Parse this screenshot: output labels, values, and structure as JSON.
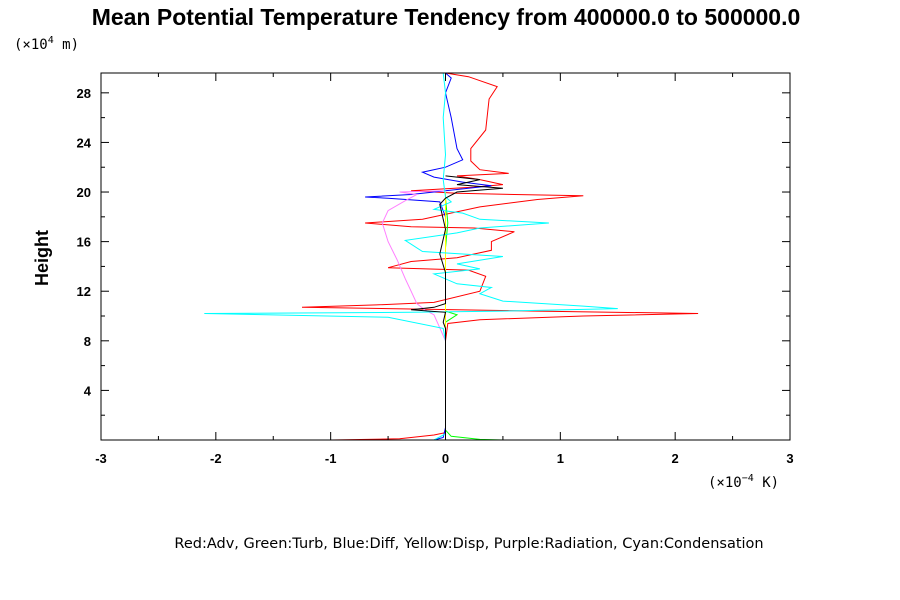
{
  "chart_data": {
    "type": "line",
    "title": "Mean Potential Temperature Tendency from 400000.0 to 500000.0",
    "ylabel": "Height",
    "y_unit_prefix": "(×10",
    "y_unit_exp": "4",
    "y_unit_suffix": " m)",
    "x_unit_prefix": "(×10",
    "x_unit_exp": "−4",
    "x_unit_suffix": " K)",
    "xlim": [
      -3,
      3
    ],
    "ylim": [
      0,
      29.6
    ],
    "xticks": [
      -3,
      -2,
      -1,
      0,
      1,
      2,
      3
    ],
    "xtick_labels": [
      "-3",
      "-2",
      "-1",
      "0",
      "1",
      "2",
      "3"
    ],
    "yticks": [
      4,
      8,
      12,
      16,
      20,
      24,
      28
    ],
    "ytick_labels": [
      "4",
      "8",
      "12",
      "16",
      "20",
      "24",
      "28"
    ],
    "legend_text": "Red:Adv, Green:Turb, Blue:Diff, Yellow:Disp, Purple:Radiation, Cyan:Condensation",
    "series": [
      {
        "color": "#ff0000",
        "points": [
          [
            -0.99,
            0
          ],
          [
            -0.4,
            0.1
          ],
          [
            -0.1,
            0.4
          ],
          [
            0,
            0.6
          ],
          [
            0,
            3
          ],
          [
            0,
            8
          ],
          [
            0.02,
            9.4
          ],
          [
            0.3,
            9.7
          ],
          [
            1.2,
            10
          ],
          [
            2.2,
            10.2
          ],
          [
            0.8,
            10.4
          ],
          [
            -0.5,
            10.6
          ],
          [
            -1.25,
            10.7
          ],
          [
            -0.6,
            10.9
          ],
          [
            -0.1,
            11.1
          ],
          [
            0.3,
            12
          ],
          [
            0.35,
            13.2
          ],
          [
            0.2,
            13.7
          ],
          [
            -0.5,
            13.9
          ],
          [
            -0.3,
            14.4
          ],
          [
            0.1,
            14.7
          ],
          [
            0.4,
            15.3
          ],
          [
            0.4,
            16
          ],
          [
            0.6,
            16.8
          ],
          [
            0.25,
            17.1
          ],
          [
            -0.3,
            17.2
          ],
          [
            -0.7,
            17.5
          ],
          [
            -0.2,
            17.8
          ],
          [
            0.3,
            18.8
          ],
          [
            0.8,
            19.4
          ],
          [
            1.2,
            19.7
          ],
          [
            0.6,
            19.8
          ],
          [
            0.1,
            19.9
          ],
          [
            -0.3,
            20.1
          ],
          [
            0.25,
            20.4
          ],
          [
            0.5,
            20.6
          ],
          [
            0.3,
            21
          ],
          [
            0.1,
            21.3
          ],
          [
            0.55,
            21.5
          ],
          [
            0.3,
            21.8
          ],
          [
            0.22,
            22.5
          ],
          [
            0.22,
            23.5
          ],
          [
            0.35,
            25
          ],
          [
            0.38,
            27.5
          ],
          [
            0.45,
            28.5
          ],
          [
            0.2,
            29.3
          ],
          [
            0,
            29.6
          ]
        ]
      },
      {
        "color": "#00ff00",
        "points": [
          [
            0.5,
            0
          ],
          [
            0.3,
            0.05
          ],
          [
            0.05,
            0.3
          ],
          [
            0,
            0.8
          ],
          [
            0,
            8
          ],
          [
            0,
            9.5
          ],
          [
            0.1,
            10.1
          ],
          [
            0,
            10.4
          ],
          [
            0,
            11
          ],
          [
            0,
            15.5
          ],
          [
            0.02,
            17.5
          ],
          [
            0,
            19.5
          ],
          [
            0,
            20
          ]
        ]
      },
      {
        "color": "#0000ff",
        "points": [
          [
            -0.1,
            0
          ],
          [
            -0.02,
            0.2
          ],
          [
            0,
            1
          ],
          [
            0,
            9
          ],
          [
            0,
            11
          ],
          [
            0,
            18
          ],
          [
            -0.05,
            19.2
          ],
          [
            -0.5,
            19.5
          ],
          [
            -0.7,
            19.6
          ],
          [
            -0.3,
            19.8
          ],
          [
            0.2,
            20.3
          ],
          [
            0.4,
            20.5
          ],
          [
            0.15,
            20.8
          ],
          [
            -0.1,
            21.2
          ],
          [
            -0.2,
            21.6
          ],
          [
            0,
            22
          ],
          [
            0.15,
            22.6
          ],
          [
            0.1,
            23.5
          ],
          [
            0.05,
            26
          ],
          [
            0,
            28
          ],
          [
            0.05,
            29.2
          ],
          [
            0,
            29.6
          ]
        ]
      },
      {
        "color": "#ffff00",
        "points": [
          [
            0,
            0
          ],
          [
            0,
            10
          ],
          [
            0,
            20
          ]
        ]
      },
      {
        "color": "#ff7fff",
        "points": [
          [
            0,
            8
          ],
          [
            -0.1,
            10.1
          ],
          [
            -0.18,
            10.5
          ],
          [
            -0.25,
            11
          ],
          [
            -0.3,
            12
          ],
          [
            -0.35,
            13
          ],
          [
            -0.42,
            14.5
          ],
          [
            -0.5,
            16
          ],
          [
            -0.55,
            17.5
          ],
          [
            -0.5,
            18.5
          ],
          [
            -0.35,
            19.3
          ],
          [
            -0.25,
            19.8
          ],
          [
            -0.4,
            20
          ],
          [
            0,
            20.1
          ]
        ]
      },
      {
        "color": "#00ffff",
        "points": [
          [
            -0.1,
            0
          ],
          [
            0,
            0.5
          ],
          [
            0,
            8
          ],
          [
            -0.02,
            9
          ],
          [
            -0.5,
            9.9
          ],
          [
            -2.1,
            10.2
          ],
          [
            -0.3,
            10.3
          ],
          [
            0.5,
            10.4
          ],
          [
            1.5,
            10.6
          ],
          [
            1.2,
            10.8
          ],
          [
            0.5,
            11.2
          ],
          [
            0.3,
            11.8
          ],
          [
            0.4,
            12.3
          ],
          [
            0.1,
            12.6
          ],
          [
            -0.1,
            13.4
          ],
          [
            0.3,
            13.8
          ],
          [
            0.1,
            14.2
          ],
          [
            0.5,
            14.8
          ],
          [
            -0.2,
            15.2
          ],
          [
            -0.35,
            16.1
          ],
          [
            0.1,
            16.7
          ],
          [
            0.3,
            17.1
          ],
          [
            0.9,
            17.5
          ],
          [
            0.3,
            17.8
          ],
          [
            0.15,
            18.3
          ],
          [
            -0.1,
            18.6
          ],
          [
            0.05,
            19.2
          ],
          [
            0,
            19.6
          ],
          [
            -0.02,
            21
          ],
          [
            0,
            23
          ],
          [
            -0.02,
            26
          ],
          [
            0,
            28
          ],
          [
            -0.02,
            29.6
          ]
        ]
      },
      {
        "color": "#000000",
        "points": [
          [
            0,
            0
          ],
          [
            0,
            9
          ],
          [
            -0.02,
            9.5
          ],
          [
            0,
            10.3
          ],
          [
            -0.3,
            10.5
          ],
          [
            -0.1,
            10.7
          ],
          [
            0,
            11
          ],
          [
            0,
            13.5
          ],
          [
            -0.05,
            15
          ],
          [
            0,
            17
          ],
          [
            -0.05,
            19
          ],
          [
            0,
            19.5
          ],
          [
            0.1,
            20
          ],
          [
            0.5,
            20.3
          ],
          [
            0.1,
            20.6
          ],
          [
            0.3,
            21
          ],
          [
            0,
            21.3
          ]
        ]
      }
    ]
  }
}
